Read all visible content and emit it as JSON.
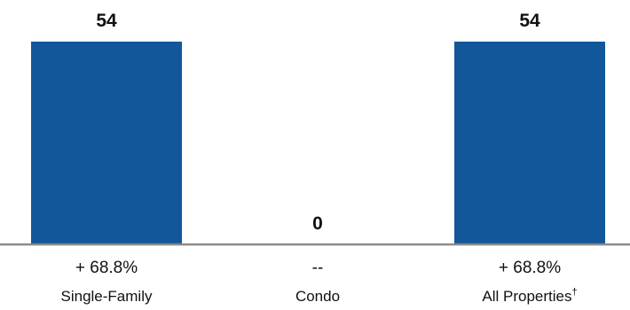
{
  "chart_data": {
    "type": "bar",
    "categories": [
      "Single-Family",
      "Condo",
      "All Properties"
    ],
    "category_suffix": [
      "",
      "",
      "†"
    ],
    "values": [
      54,
      0,
      54
    ],
    "value_labels": [
      "54",
      "0",
      "54"
    ],
    "changes": [
      "+ 68.8%",
      "--",
      "+ 68.8%"
    ],
    "title": "",
    "xlabel": "",
    "ylabel": "",
    "ylim": [
      0,
      54
    ],
    "grid": false,
    "legend": "none",
    "bar_color": "#12579A",
    "baseline_color": "#8C8C8C"
  }
}
